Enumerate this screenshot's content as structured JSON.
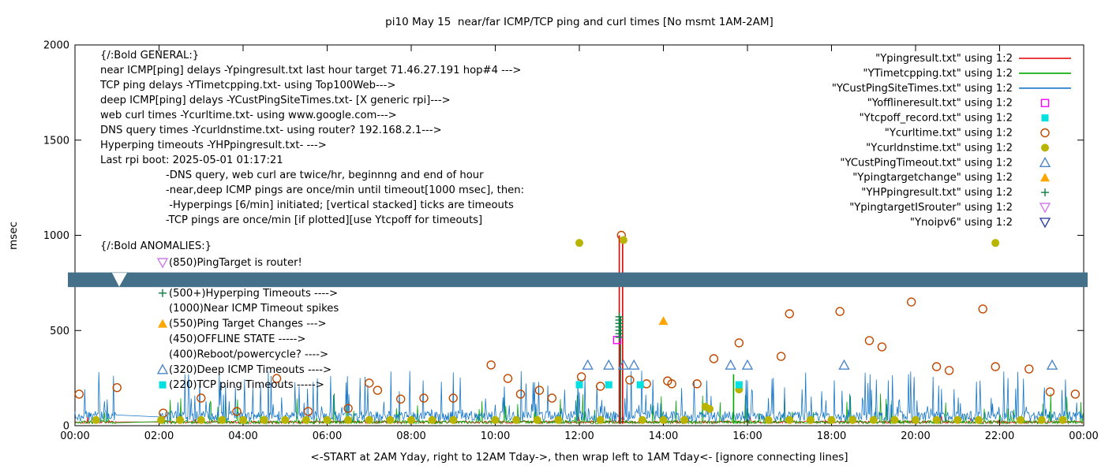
{
  "chart_data": {
    "type": "mixed",
    "title": "pi10 May 15  near/far ICMP/TCP ping and curl times [No msmt 1AM-2AM]",
    "xlabel": "<-START at 2AM Yday, right to 12AM Tday->, then wrap left to 1AM Tday<- [ignore connecting lines]",
    "ylabel": "msec",
    "x_ticks": [
      "00:00",
      "02:00",
      "04:00",
      "06:00",
      "08:00",
      "10:00",
      "12:00",
      "14:00",
      "16:00",
      "18:00",
      "20:00",
      "22:00",
      "00:00"
    ],
    "y_ticks": [
      0,
      500,
      1000,
      1500,
      2000
    ],
    "ylim": [
      0,
      2000
    ],
    "xlim_hours": [
      0,
      24
    ],
    "gap_hours": [
      1,
      2
    ],
    "colors": {
      "red": "#e00000",
      "green": "#00a800",
      "blue": "#1576c8",
      "magenta": "#ff00ff",
      "cyan": "#00e0e0",
      "curl_orange": "#c04800",
      "dns_olive": "#b8b400",
      "timeout_blue": "#4d86c8",
      "orange": "#ffa500",
      "hp_green": "#0a8040",
      "violet": "#cf7de8",
      "navy": "#2a3f9f"
    },
    "noise_series": [
      {
        "name": "Ypingresult",
        "color_key": "red",
        "base": 12,
        "amp": 14,
        "spike_prob": 0.012,
        "spike_base": 26,
        "spike_amp": 30,
        "seed": 101
      },
      {
        "name": "YTimetcpping",
        "color_key": "green",
        "base": 10,
        "amp": 18,
        "spike_prob": 0.05,
        "spike_base": 40,
        "spike_amp": 130,
        "seed": 202
      },
      {
        "name": "YCustPingSiteTimes",
        "color_key": "blue",
        "base": 22,
        "amp": 55,
        "spike_prob": 0.12,
        "spike_base": 80,
        "spike_amp": 210,
        "seed": 303
      }
    ],
    "event_lines": [
      {
        "x": 12.95,
        "y0": 10,
        "y1": 1000,
        "color_key": "red"
      },
      {
        "x": 13.03,
        "y0": 10,
        "y1": 985,
        "color_key": "red"
      },
      {
        "x": 12.98,
        "y0": 10,
        "y1": 575,
        "color_key": "hp_green"
      },
      {
        "x": 15.67,
        "y0": 10,
        "y1": 270,
        "color_key": "green"
      }
    ],
    "scatter_series": [
      {
        "name": "Ycurltime",
        "marker": "circle-open",
        "color_key": "curl_orange",
        "points": [
          [
            0.1,
            166
          ],
          [
            1.0,
            200
          ],
          [
            2.1,
            66
          ],
          [
            3.0,
            145
          ],
          [
            3.85,
            75
          ],
          [
            4.8,
            248
          ],
          [
            5.55,
            75
          ],
          [
            6.5,
            91
          ],
          [
            7.0,
            224
          ],
          [
            7.2,
            186
          ],
          [
            7.75,
            140
          ],
          [
            8.3,
            145
          ],
          [
            9.0,
            145
          ],
          [
            9.9,
            319
          ],
          [
            10.3,
            248
          ],
          [
            10.6,
            166
          ],
          [
            11.05,
            186
          ],
          [
            11.35,
            145
          ],
          [
            12.05,
            257
          ],
          [
            12.5,
            207
          ],
          [
            13.0,
            1000
          ],
          [
            13.2,
            240
          ],
          [
            13.6,
            220
          ],
          [
            14.1,
            235
          ],
          [
            14.2,
            220
          ],
          [
            14.8,
            220
          ],
          [
            15.2,
            352
          ],
          [
            15.8,
            435
          ],
          [
            16.8,
            364
          ],
          [
            17.0,
            588
          ],
          [
            18.2,
            600
          ],
          [
            18.9,
            447
          ],
          [
            19.2,
            414
          ],
          [
            19.9,
            650
          ],
          [
            20.5,
            310
          ],
          [
            20.8,
            290
          ],
          [
            21.6,
            613
          ],
          [
            21.9,
            310
          ],
          [
            22.7,
            298
          ],
          [
            23.2,
            178
          ],
          [
            23.8,
            166
          ]
        ]
      },
      {
        "name": "Ycurldnstime",
        "marker": "circle-filled",
        "color_key": "dns_olive",
        "points": [
          [
            0.5,
            30
          ],
          [
            2.05,
            30
          ],
          [
            2.5,
            30
          ],
          [
            3.0,
            30
          ],
          [
            3.5,
            30
          ],
          [
            4.0,
            30
          ],
          [
            4.5,
            30
          ],
          [
            5.0,
            30
          ],
          [
            5.5,
            30
          ],
          [
            6.0,
            30
          ],
          [
            6.5,
            30
          ],
          [
            7.0,
            30
          ],
          [
            7.5,
            30
          ],
          [
            8.0,
            30
          ],
          [
            8.5,
            30
          ],
          [
            9.0,
            30
          ],
          [
            10.0,
            30
          ],
          [
            10.5,
            30
          ],
          [
            11.0,
            30
          ],
          [
            11.5,
            30
          ],
          [
            12.5,
            30
          ],
          [
            13.5,
            30
          ],
          [
            14.0,
            30
          ],
          [
            14.5,
            30
          ],
          [
            16.5,
            30
          ],
          [
            17.0,
            30
          ],
          [
            17.5,
            30
          ],
          [
            18.0,
            30
          ],
          [
            18.5,
            30
          ],
          [
            19.0,
            30
          ],
          [
            19.5,
            30
          ],
          [
            20.0,
            30
          ],
          [
            20.5,
            30
          ],
          [
            21.0,
            30
          ],
          [
            21.5,
            30
          ],
          [
            22.5,
            30
          ],
          [
            23.0,
            30
          ],
          [
            23.5,
            30
          ],
          [
            12.0,
            960
          ],
          [
            13.05,
            975
          ],
          [
            21.9,
            960
          ],
          [
            15.8,
            190
          ],
          [
            15.0,
            100
          ],
          [
            15.1,
            88
          ]
        ]
      },
      {
        "name": "YCustPingTimeout",
        "marker": "triangle-open",
        "color_key": "timeout_blue",
        "points": [
          [
            12.2,
            318
          ],
          [
            12.7,
            318
          ],
          [
            13.05,
            318
          ],
          [
            13.3,
            318
          ],
          [
            15.6,
            318
          ],
          [
            16.0,
            318
          ],
          [
            18.3,
            318
          ],
          [
            23.25,
            318
          ]
        ]
      },
      {
        "name": "Ytcpoff_record",
        "marker": "square-filled",
        "color_key": "cyan",
        "points": [
          [
            12.0,
            215
          ],
          [
            12.7,
            215
          ],
          [
            13.45,
            215
          ],
          [
            15.8,
            215
          ]
        ]
      },
      {
        "name": "Yofflineresult",
        "marker": "square-open",
        "color_key": "magenta",
        "points": [
          [
            12.9,
            450
          ]
        ]
      },
      {
        "name": "Ypingtargetchange",
        "marker": "triangle-filled",
        "color_key": "orange",
        "points": [
          [
            14.0,
            550
          ]
        ]
      },
      {
        "name": "YHPpingresult",
        "marker": "plus",
        "color_key": "hp_green",
        "points": [
          [
            12.95,
            465
          ],
          [
            12.95,
            483
          ],
          [
            12.95,
            501
          ],
          [
            12.95,
            519
          ],
          [
            12.95,
            537
          ],
          [
            12.95,
            555
          ],
          [
            12.95,
            572
          ]
        ]
      }
    ],
    "band": {
      "y_low": 728,
      "y_high": 805,
      "color": "#44708a",
      "notch_x": 151
    },
    "legend": [
      {
        "label": "\"Ypingresult.txt\" using 1:2",
        "type": "line",
        "color_key": "red"
      },
      {
        "label": "\"YTimetcpping.txt\" using 1:2",
        "type": "line",
        "color_key": "green"
      },
      {
        "label": "\"YCustPingSiteTimes.txt\" using 1:2",
        "type": "line",
        "color_key": "blue"
      },
      {
        "label": "\"Yofflineresult.txt\" using 1:2",
        "type": "square-open",
        "color_key": "magenta"
      },
      {
        "label": "\"Ytcpoff_record.txt\" using 1:2",
        "type": "square-filled",
        "color_key": "cyan"
      },
      {
        "label": "\"Ycurltime.txt\" using 1:2",
        "type": "circle-open",
        "color_key": "curl_orange"
      },
      {
        "label": "\"Ycurldnstime.txt\" using 1:2",
        "type": "circle-filled",
        "color_key": "dns_olive"
      },
      {
        "label": "\"YCustPingTimeout.txt\" using 1:2",
        "type": "triangle-open",
        "color_key": "timeout_blue"
      },
      {
        "label": "\"Ypingtargetchange\" using 1:2",
        "type": "triangle-filled",
        "color_key": "orange"
      },
      {
        "label": "\"YHPpingresult.txt\" using 1:2",
        "type": "plus",
        "color_key": "hp_green"
      },
      {
        "label": "\"YpingtargetISrouter\" using 1:2",
        "type": "triangle-down-open",
        "color_key": "violet"
      },
      {
        "label": "\"Ynoipv6\" using 1:2",
        "type": "triangle-down-open",
        "color_key": "navy"
      }
    ],
    "annotations": {
      "general_lines": [
        "{/:Bold GENERAL:}",
        "near ICMP[ping] delays -Ypingresult.txt last hour target 71.46.27.191 hop#4 --->",
        "TCP ping delays -YTimetcpping.txt- using Top100Web--->",
        "deep ICMP[ping] delays -YCustPingSiteTimes.txt- [X generic rpi]--->",
        "web curl times -Ycurltime.txt- using www.google.com--->",
        "DNS query times -Ycurldnstime.txt- using router? 192.168.2.1--->",
        "Hyperping timeouts -YHPpingresult.txt- --->",
        "Last rpi boot: 2025-05-01 01:17:21"
      ],
      "general_indent_lines": [
        "-DNS query, web curl are twice/hr, beginnng and end of hour",
        "-near,deep ICMP pings are once/min until timeout[1000 msec], then:",
        " -Hyperpings [6/min] initiated; [vertical stacked] ticks are timeouts",
        "-TCP pings are once/min [if plotted][use Ytcpoff for timeouts]"
      ],
      "anomalies_header": "{/:Bold ANOMALIES:}",
      "anomaly_items": [
        {
          "marker": "triangle-down-open",
          "color_key": "violet",
          "text": "(850)PingTarget is router!"
        },
        {
          "marker": null,
          "color_key": null,
          "text": ""
        },
        {
          "marker": "plus",
          "color_key": "hp_green",
          "text": "(500+)Hyperping Timeouts ---->"
        },
        {
          "marker": null,
          "color_key": null,
          "text": "(1000)Near ICMP Timeout spikes"
        },
        {
          "marker": "triangle-filled",
          "color_key": "orange",
          "text": "(550)Ping Target Changes --->"
        },
        {
          "marker": null,
          "color_key": null,
          "text": "(450)OFFLINE STATE ----->"
        },
        {
          "marker": null,
          "color_key": null,
          "text": "(400)Reboot/powercycle? ---->"
        },
        {
          "marker": "triangle-open",
          "color_key": "timeout_blue",
          "text": "(320)Deep ICMP Timeouts ---->"
        },
        {
          "marker": "square-filled",
          "color_key": "cyan",
          "text": "(220)TCP ping Timeouts ----->"
        }
      ]
    }
  }
}
